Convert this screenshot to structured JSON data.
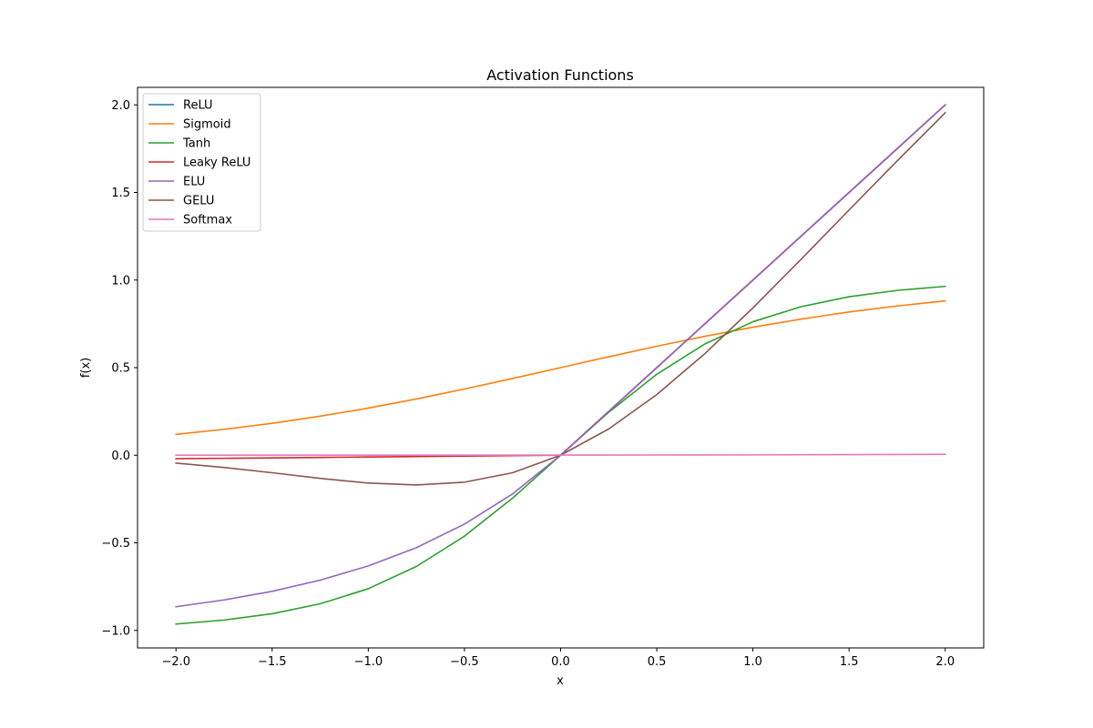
{
  "chart_data": {
    "type": "line",
    "title": "Activation Functions",
    "xlabel": "x",
    "ylabel": "f(x)",
    "xlim": [
      -2.2,
      2.2
    ],
    "ylim": [
      -1.1,
      2.1
    ],
    "grid": false,
    "legend_position": "upper-left",
    "xticks": [
      -2.0,
      -1.5,
      -1.0,
      -0.5,
      0.0,
      0.5,
      1.0,
      1.5,
      2.0
    ],
    "xtick_labels": [
      "−2.0",
      "−1.5",
      "−1.0",
      "−0.5",
      "0.0",
      "0.5",
      "1.0",
      "1.5",
      "2.0"
    ],
    "yticks": [
      -1.0,
      -0.5,
      0.0,
      0.5,
      1.0,
      1.5,
      2.0
    ],
    "ytick_labels": [
      "−1.0",
      "−0.5",
      "0.0",
      "0.5",
      "1.0",
      "1.5",
      "2.0"
    ],
    "x": [
      -2.0,
      -1.75,
      -1.5,
      -1.25,
      -1.0,
      -0.75,
      -0.5,
      -0.25,
      0.0,
      0.25,
      0.5,
      0.75,
      1.0,
      1.25,
      1.5,
      1.75,
      2.0
    ],
    "series": [
      {
        "name": "ReLU",
        "color": "#1f77b4",
        "values": [
          0,
          0,
          0,
          0,
          0,
          0,
          0,
          0,
          0,
          0.25,
          0.5,
          0.75,
          1.0,
          1.25,
          1.5,
          1.75,
          2.0
        ]
      },
      {
        "name": "Sigmoid",
        "color": "#ff7f0e",
        "values": [
          0.119,
          0.148,
          0.182,
          0.223,
          0.269,
          0.321,
          0.378,
          0.438,
          0.5,
          0.562,
          0.622,
          0.679,
          0.731,
          0.777,
          0.818,
          0.852,
          0.881
        ]
      },
      {
        "name": "Tanh",
        "color": "#2ca02c",
        "values": [
          -0.964,
          -0.941,
          -0.905,
          -0.848,
          -0.762,
          -0.635,
          -0.462,
          -0.245,
          0.0,
          0.245,
          0.462,
          0.635,
          0.762,
          0.848,
          0.905,
          0.941,
          0.964
        ]
      },
      {
        "name": "Leaky ReLU",
        "color": "#d62728",
        "values": [
          -0.02,
          -0.0175,
          -0.015,
          -0.0125,
          -0.01,
          -0.0075,
          -0.005,
          -0.0025,
          0.0,
          0.25,
          0.5,
          0.75,
          1.0,
          1.25,
          1.5,
          1.75,
          2.0
        ]
      },
      {
        "name": "ELU",
        "color": "#9467bd",
        "values": [
          -0.865,
          -0.826,
          -0.777,
          -0.713,
          -0.632,
          -0.528,
          -0.393,
          -0.221,
          0.0,
          0.25,
          0.5,
          0.75,
          1.0,
          1.25,
          1.5,
          1.75,
          2.0
        ]
      },
      {
        "name": "GELU",
        "color": "#8c564b",
        "values": [
          -0.045,
          -0.07,
          -0.1,
          -0.132,
          -0.159,
          -0.17,
          -0.154,
          -0.1,
          0.0,
          0.15,
          0.346,
          0.58,
          0.841,
          1.118,
          1.4,
          1.68,
          1.955
        ]
      },
      {
        "name": "Softmax",
        "color": "#e377c2",
        "values": [
          0.0001,
          0.0001,
          0.0002,
          0.0002,
          0.0003,
          0.0004,
          0.0005,
          0.0006,
          0.0008,
          0.001,
          0.0013,
          0.0016,
          0.002,
          0.0026,
          0.0033,
          0.0043,
          0.0055
        ]
      }
    ]
  }
}
